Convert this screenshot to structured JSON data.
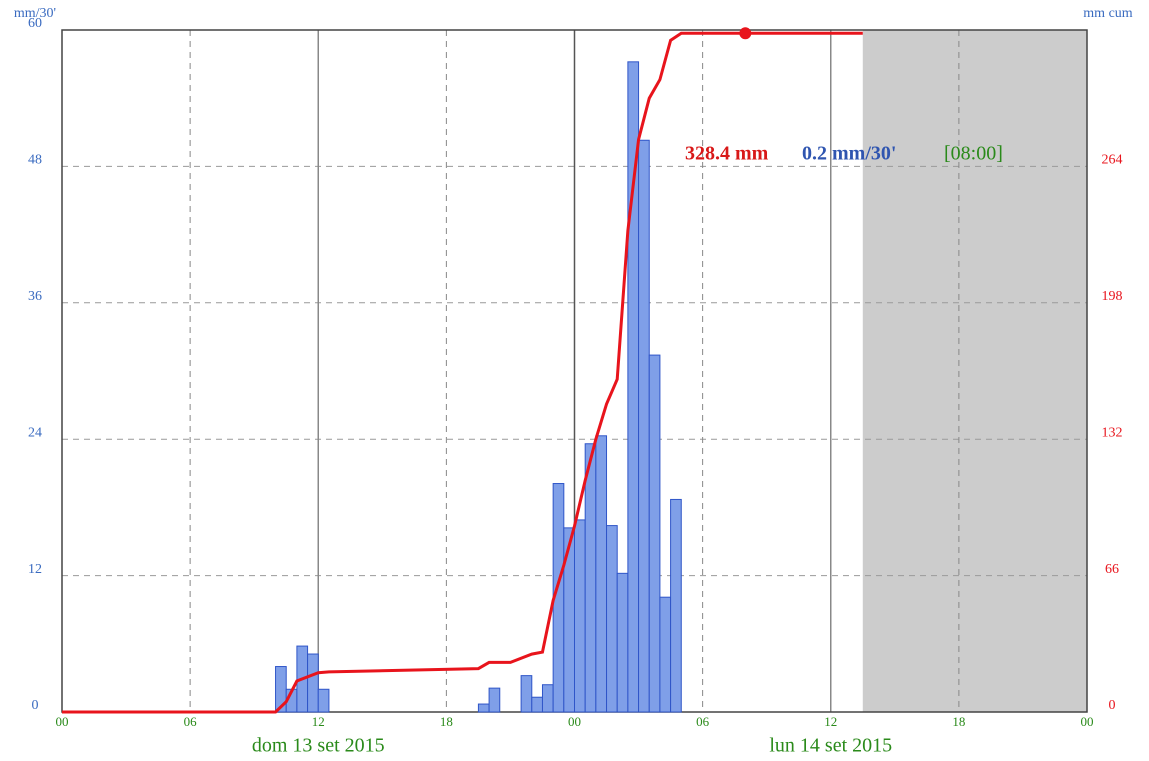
{
  "chart_data": {
    "type": "bar",
    "ylabel": "mm/30'",
    "y2label": "mm cum",
    "xlim": [
      0,
      48
    ],
    "xticks": [
      {
        "value": 0,
        "label": "00"
      },
      {
        "value": 6,
        "label": "06"
      },
      {
        "value": 12,
        "label": "12"
      },
      {
        "value": 18,
        "label": "18"
      },
      {
        "value": 24,
        "label": "00"
      },
      {
        "value": 30,
        "label": "06"
      },
      {
        "value": 36,
        "label": "12"
      },
      {
        "value": 42,
        "label": "18"
      },
      {
        "value": 48,
        "label": "00"
      }
    ],
    "ylim": [
      0,
      60
    ],
    "yticks": [
      0,
      12,
      24,
      36,
      48,
      60
    ],
    "y2lim": [
      0,
      330
    ],
    "y2ticks": [
      0,
      66,
      132,
      198,
      264
    ],
    "grid": true,
    "date_labels": [
      "dom 13 set 2015",
      "lun 14 set 2015"
    ],
    "forecast_start": 37.5,
    "series": [
      {
        "type": "bar",
        "color": "#7f9fe8",
        "bar_width": 0.5,
        "x": [
          10,
          10.5,
          11,
          11.5,
          12,
          19.5,
          20,
          21.5,
          22,
          22.5,
          23,
          23.5,
          24,
          24.5,
          25,
          25.5,
          26,
          26.5,
          27,
          27.5,
          28,
          28.5
        ],
        "values": [
          4.0,
          2.0,
          5.8,
          5.1,
          2.0,
          0.7,
          2.1,
          3.2,
          1.3,
          2.4,
          20.1,
          16.2,
          16.9,
          23.6,
          24.3,
          16.4,
          12.2,
          57.2,
          50.3,
          31.4,
          10.1,
          18.7
        ]
      },
      {
        "type": "line",
        "axis": "y2",
        "color": "#e8141c",
        "x": [
          0,
          10,
          10.5,
          11,
          12,
          12.5,
          19.5,
          20,
          21,
          22,
          22.5,
          23,
          23.5,
          24,
          24.5,
          25,
          25.5,
          26,
          26.5,
          27,
          27.5,
          28,
          28.5,
          29,
          37.5
        ],
        "values": [
          0,
          0,
          5,
          15,
          19,
          19.4,
          21,
          24,
          24,
          28,
          29,
          54,
          71,
          90,
          112,
          132,
          149,
          161,
          233,
          277,
          297,
          306,
          325,
          328.4,
          328.4
        ]
      }
    ],
    "current": {
      "x": 32,
      "value": 328.4
    },
    "annotation": {
      "total": "328.4 mm",
      "rate": "0.2 mm/30'",
      "time": "[08:00]"
    }
  }
}
